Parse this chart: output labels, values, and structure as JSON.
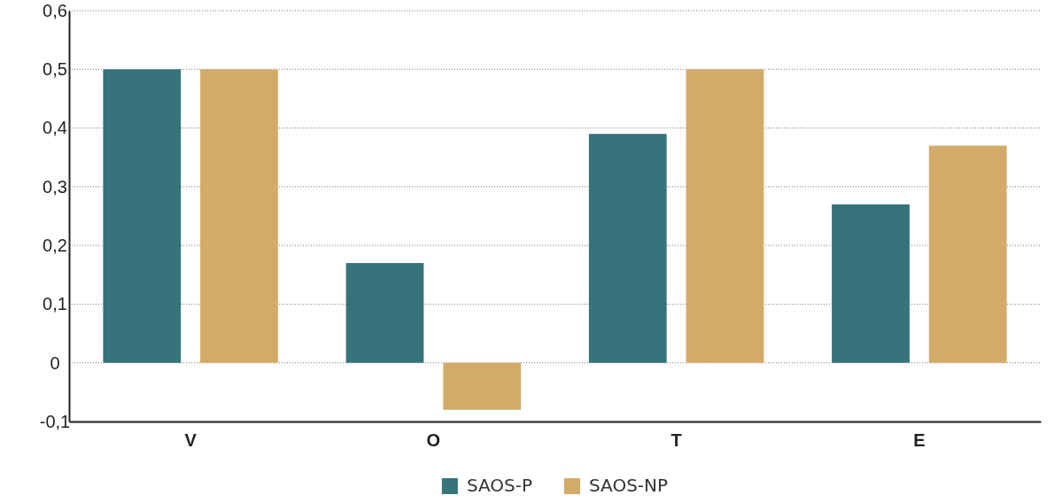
{
  "chart_data": {
    "type": "bar",
    "categories": [
      "V",
      "O",
      "T",
      "E"
    ],
    "series": [
      {
        "name": "SAOS-P",
        "color": "#36737b",
        "values": [
          0.5,
          0.17,
          0.39,
          0.27
        ]
      },
      {
        "name": "SAOS-NP",
        "color": "#d3aa67",
        "values": [
          0.5,
          -0.08,
          0.5,
          0.37
        ]
      }
    ],
    "ylim": [
      -0.1,
      0.6
    ],
    "yticks": [
      {
        "value": -0.1,
        "label": "-0,1"
      },
      {
        "value": 0,
        "label": "0"
      },
      {
        "value": 0.1,
        "label": "0,1"
      },
      {
        "value": 0.2,
        "label": "0,2"
      },
      {
        "value": 0.3,
        "label": "0,3"
      },
      {
        "value": 0.4,
        "label": "0,4"
      },
      {
        "value": 0.5,
        "label": "0,5"
      },
      {
        "value": 0.6,
        "label": "0,6"
      }
    ],
    "grid": "y",
    "legend": "bottom"
  }
}
